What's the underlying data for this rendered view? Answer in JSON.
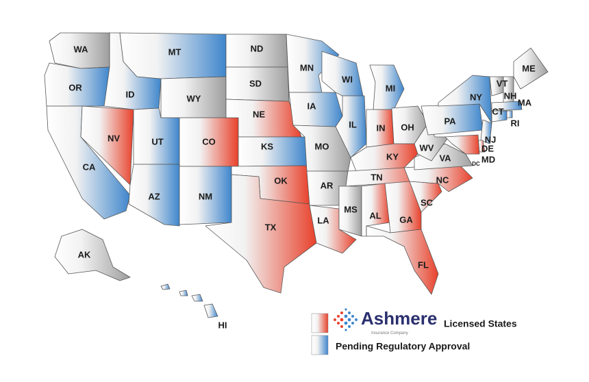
{
  "map": {
    "states": [
      {
        "label": "WA",
        "color": "#9e9e9e"
      },
      {
        "label": "OR",
        "color": "#3f86cc"
      },
      {
        "label": "CA",
        "color": "#3f86cc"
      },
      {
        "label": "NV",
        "color": "#e8412b"
      },
      {
        "label": "ID",
        "color": "#3f86cc"
      },
      {
        "label": "MT",
        "color": "#3f86cc"
      },
      {
        "label": "WY",
        "color": "#9e9e9e"
      },
      {
        "label": "UT",
        "color": "#3f86cc"
      },
      {
        "label": "CO",
        "color": "#e8412b"
      },
      {
        "label": "AZ",
        "color": "#3f86cc"
      },
      {
        "label": "NM",
        "color": "#3f86cc"
      },
      {
        "label": "ND",
        "color": "#9e9e9e"
      },
      {
        "label": "SD",
        "color": "#9e9e9e"
      },
      {
        "label": "NE",
        "color": "#e8412b"
      },
      {
        "label": "KS",
        "color": "#3f86cc"
      },
      {
        "label": "OK",
        "color": "#e8412b"
      },
      {
        "label": "TX",
        "color": "#e8412b"
      },
      {
        "label": "MN",
        "color": "#3f86cc"
      },
      {
        "label": "IA",
        "color": "#3f86cc"
      },
      {
        "label": "MO",
        "color": "#9e9e9e"
      },
      {
        "label": "AR",
        "color": "#9e9e9e"
      },
      {
        "label": "LA",
        "color": "#e8412b"
      },
      {
        "label": "WI",
        "color": "#3f86cc"
      },
      {
        "label": "IL",
        "color": "#3f86cc"
      },
      {
        "label": "MI",
        "color": "#3f86cc"
      },
      {
        "label": "IN",
        "color": "#e8412b"
      },
      {
        "label": "OH",
        "color": "#9e9e9e"
      },
      {
        "label": "KY",
        "color": "#e8412b"
      },
      {
        "label": "TN",
        "color": "#e8412b"
      },
      {
        "label": "MS",
        "color": "#9e9e9e"
      },
      {
        "label": "AL",
        "color": "#e8412b"
      },
      {
        "label": "GA",
        "color": "#e8412b"
      },
      {
        "label": "FL",
        "color": "#e8412b"
      },
      {
        "label": "SC",
        "color": "#e8412b"
      },
      {
        "label": "NC",
        "color": "#e8412b"
      },
      {
        "label": "VA",
        "color": "#9e9e9e"
      },
      {
        "label": "WV",
        "color": "#9e9e9e"
      },
      {
        "label": "PA",
        "color": "#3f86cc"
      },
      {
        "label": "NY",
        "color": "#3f86cc"
      },
      {
        "label": "VT",
        "color": "#9e9e9e"
      },
      {
        "label": "NH",
        "color": "#9e9e9e"
      },
      {
        "label": "ME",
        "color": "#9e9e9e"
      },
      {
        "label": "MA",
        "color": "#3f86cc"
      },
      {
        "label": "CT",
        "color": "#3f86cc"
      },
      {
        "label": "RI",
        "color": "#3f86cc"
      },
      {
        "label": "NJ",
        "color": "#3f86cc"
      },
      {
        "label": "DE",
        "color": "#e8412b"
      },
      {
        "label": "MD",
        "color": "#e8412b"
      },
      {
        "label": "DC",
        "color": "#9e9e9e"
      },
      {
        "label": "AK",
        "color": "#9e9e9e"
      },
      {
        "label": "HI",
        "color": "#3f86cc"
      }
    ],
    "legend": [
      {
        "label": "Licensed States",
        "color": "#e8412b"
      },
      {
        "label": "Pending Regulatory Approval",
        "color": "#3f86cc"
      }
    ],
    "logo": {
      "name": "Ashmere",
      "tagline": "Insurance Company"
    }
  }
}
